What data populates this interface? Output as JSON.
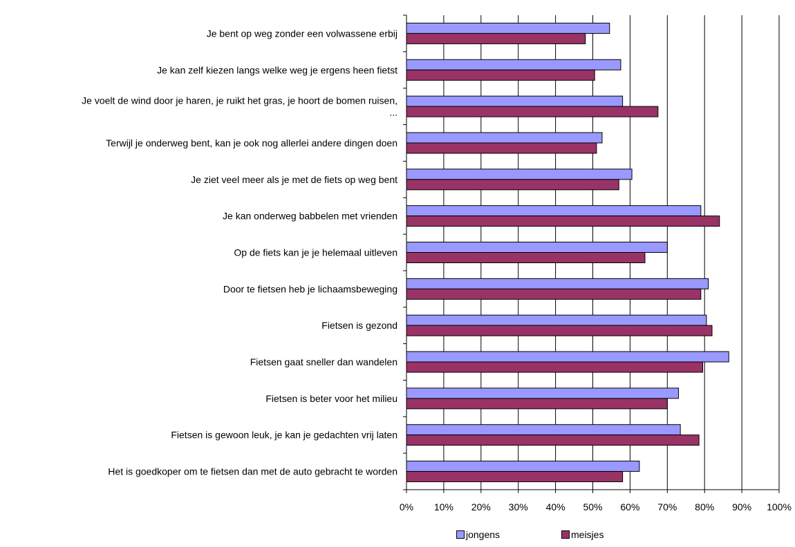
{
  "chart_data": {
    "type": "bar",
    "orientation": "horizontal",
    "categories": [
      "Je bent op weg zonder een volwassene erbij",
      "Je kan zelf kiezen langs welke weg je ergens heen fietst",
      "Je voelt de wind door je haren, je ruikt het gras, je hoort de bomen ruisen,\n...",
      "Terwijl je onderweg bent, kan je ook nog allerlei andere dingen doen",
      "Je ziet veel meer als je met de fiets op weg bent",
      "Je kan onderweg babbelen met vrienden",
      "Op de fiets kan je je helemaal uitleven",
      "Door te fietsen heb je lichaamsbeweging",
      "Fietsen is gezond",
      "Fietsen gaat sneller dan wandelen",
      "Fietsen is beter voor het milieu",
      "Fietsen is gewoon leuk, je kan je gedachten vrij laten",
      "Het is goedkoper om te fietsen dan met de auto gebracht te worden"
    ],
    "series": [
      {
        "name": "jongens",
        "color": "#9999ff",
        "values": [
          54.5,
          57.5,
          58,
          52.5,
          60.5,
          79,
          70,
          81,
          80.5,
          86.5,
          73,
          73.5,
          62.5
        ]
      },
      {
        "name": "meisjes",
        "color": "#993366",
        "values": [
          48,
          50.5,
          67.5,
          51,
          57,
          84,
          64,
          79,
          82,
          79.5,
          70,
          78.5,
          58
        ]
      }
    ],
    "xlim": [
      0,
      100
    ],
    "x_tick_labels": [
      "0%",
      "10%",
      "20%",
      "30%",
      "40%",
      "50%",
      "60%",
      "70%",
      "80%",
      "90%",
      "100%"
    ],
    "grid": "vertical",
    "legend_position": "bottom",
    "title": "",
    "xlabel": "",
    "ylabel": ""
  },
  "legend": {
    "items": [
      {
        "label": "jongens",
        "color": "#9999ff"
      },
      {
        "label": "meisjes",
        "color": "#993366"
      }
    ]
  }
}
